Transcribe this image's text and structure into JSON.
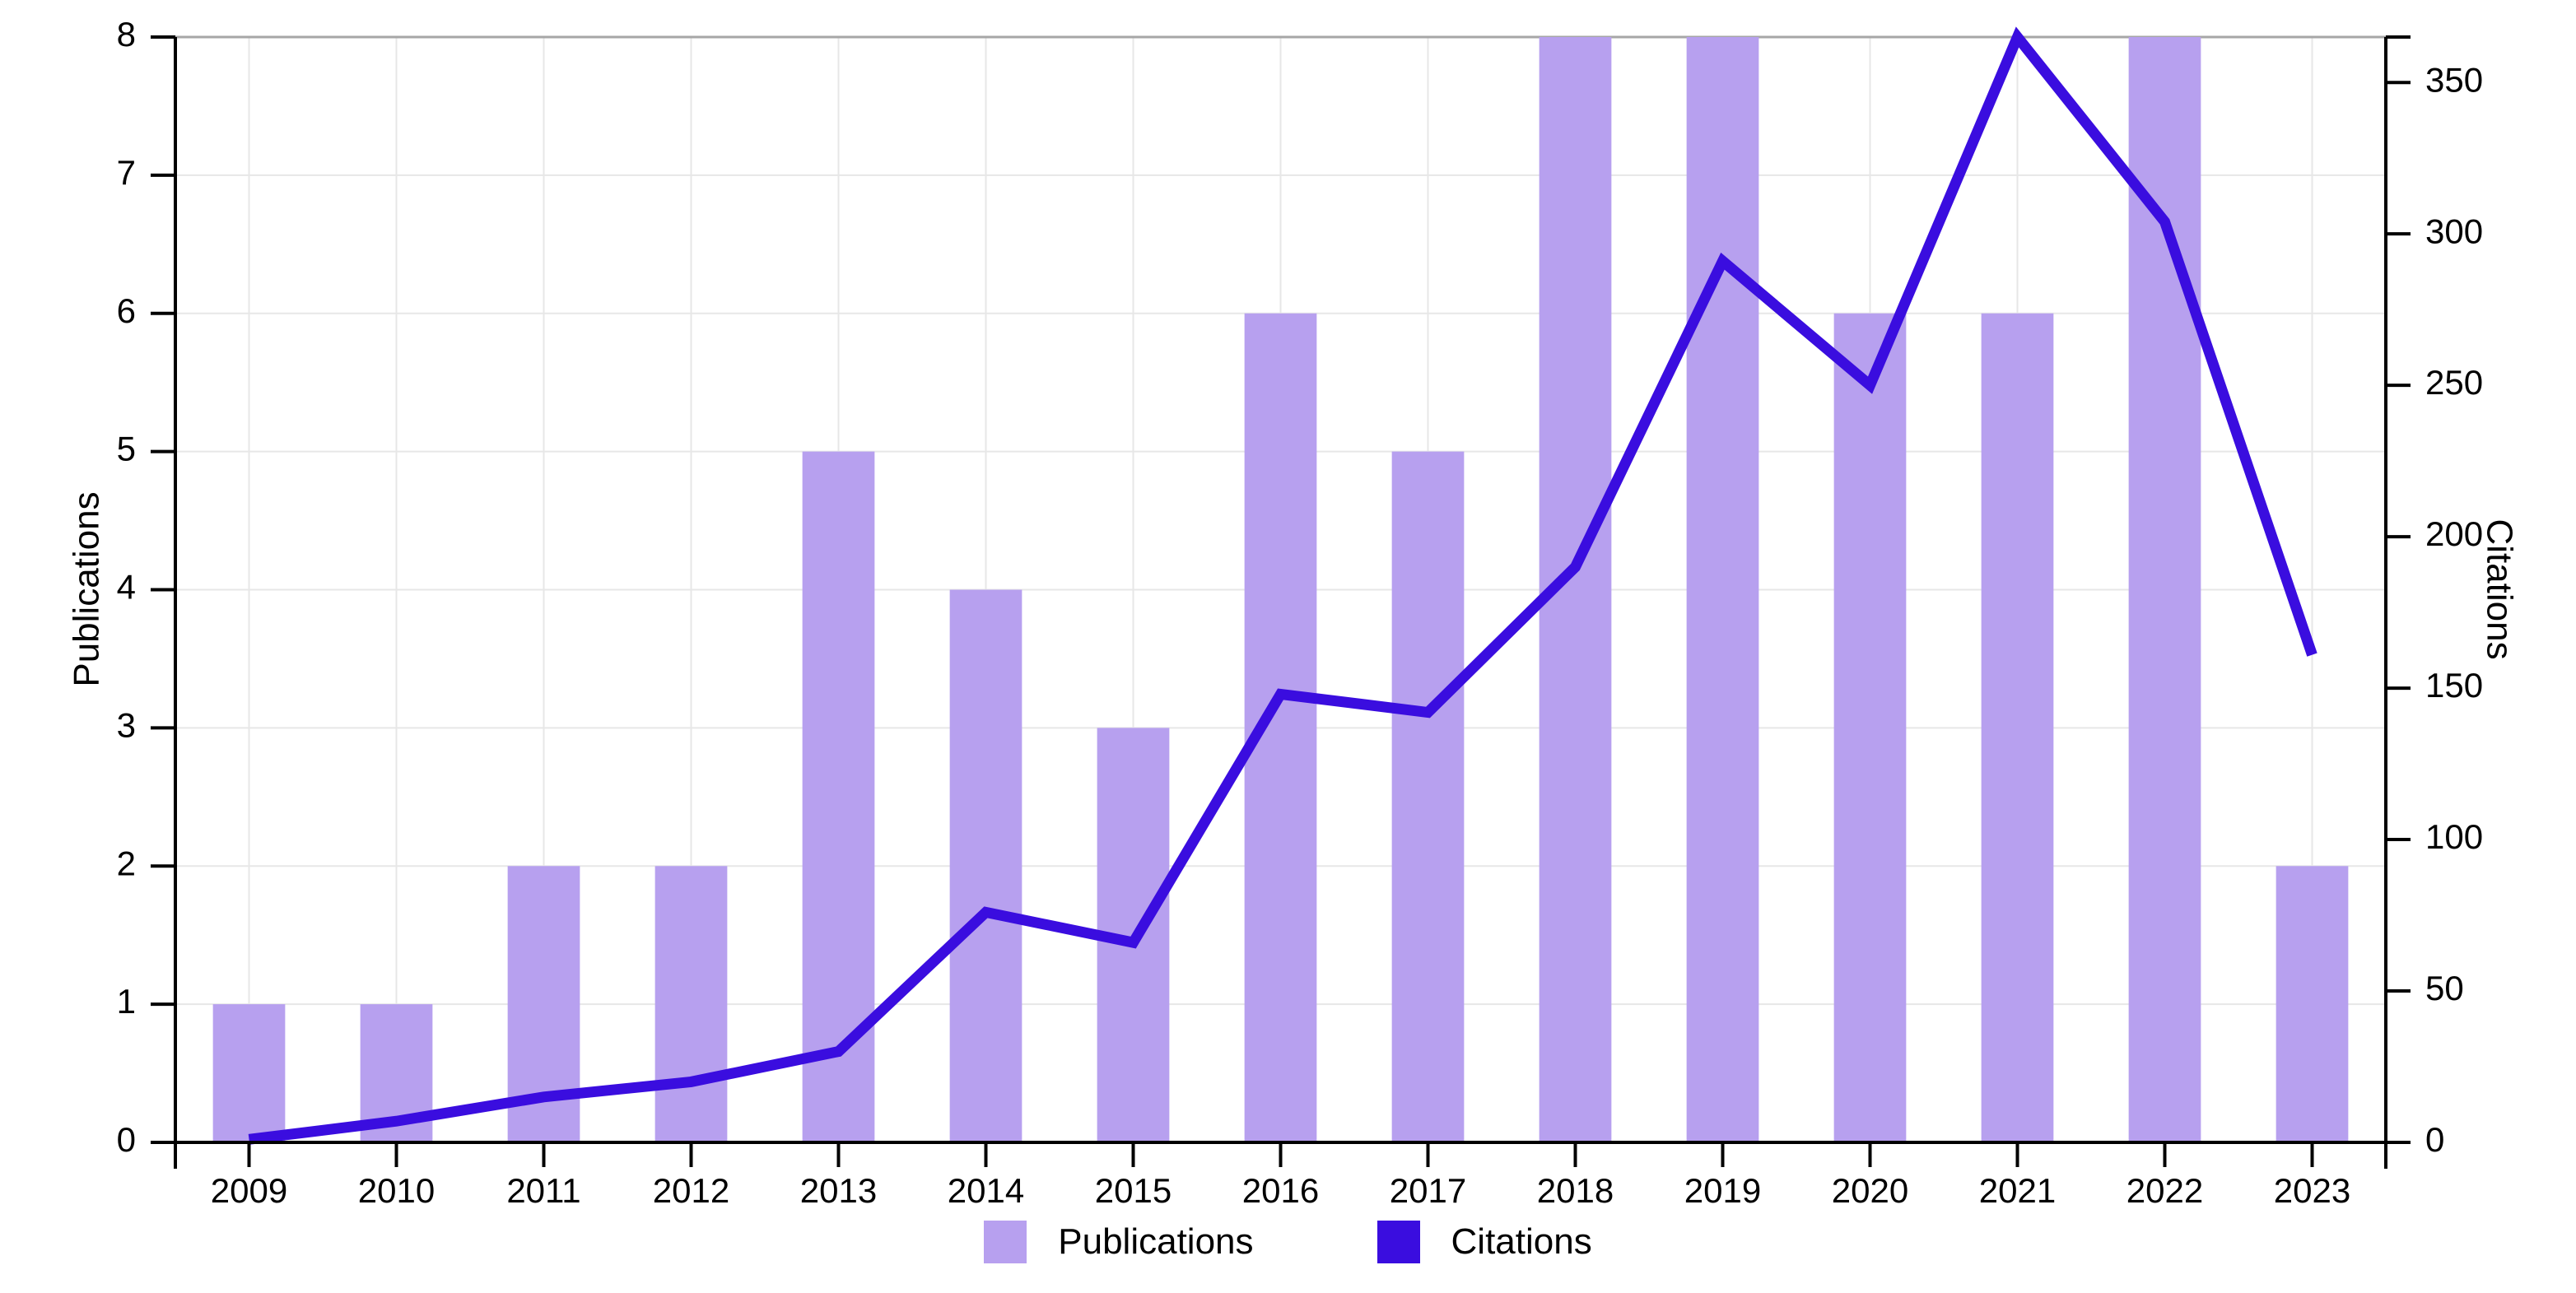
{
  "chart_data": {
    "type": "combo-bar-line",
    "categories": [
      "2009",
      "2010",
      "2011",
      "2012",
      "2013",
      "2014",
      "2015",
      "2016",
      "2017",
      "2018",
      "2019",
      "2020",
      "2021",
      "2022",
      "2023"
    ],
    "series": [
      {
        "name": "Publications",
        "type": "bar",
        "axis": "left",
        "color": "#b7a0ef",
        "values": [
          1,
          1,
          2,
          2,
          5,
          4,
          3,
          6,
          5,
          8,
          8,
          6,
          6,
          8,
          2
        ]
      },
      {
        "name": "Citations",
        "type": "line",
        "axis": "right",
        "color": "#3a0ddf",
        "values": [
          1,
          7,
          15,
          20,
          30,
          76,
          66,
          148,
          142,
          190,
          291,
          250,
          365,
          304,
          161
        ]
      }
    ],
    "left_axis": {
      "label": "Publications",
      "min": 0,
      "max": 8,
      "ticks": [
        0,
        1,
        2,
        3,
        4,
        5,
        6,
        7,
        8
      ]
    },
    "right_axis": {
      "label": "Citations",
      "min": 0,
      "max": 365,
      "ticks": [
        0,
        50,
        100,
        150,
        200,
        250,
        300,
        350
      ],
      "top_tick_unlabeled": 365
    },
    "x_axis": {
      "tick_labels": [
        "2009",
        "2010",
        "2011",
        "2012",
        "2013",
        "2014",
        "2015",
        "2016",
        "2017",
        "2018",
        "2019",
        "2020",
        "2021",
        "2022",
        "2023"
      ]
    },
    "legend": {
      "entries": [
        "Publications",
        "Citations"
      ],
      "position": "bottom-center"
    },
    "grid": {
      "horizontal": true,
      "vertical": true,
      "color": "#e7e7e7",
      "top_border_color": "#a6a6a6"
    },
    "styles": {
      "bar_color": "#b7a0ef",
      "line_color": "#3a0ddf",
      "axis_color": "#000000",
      "background": "#ffffff"
    }
  }
}
